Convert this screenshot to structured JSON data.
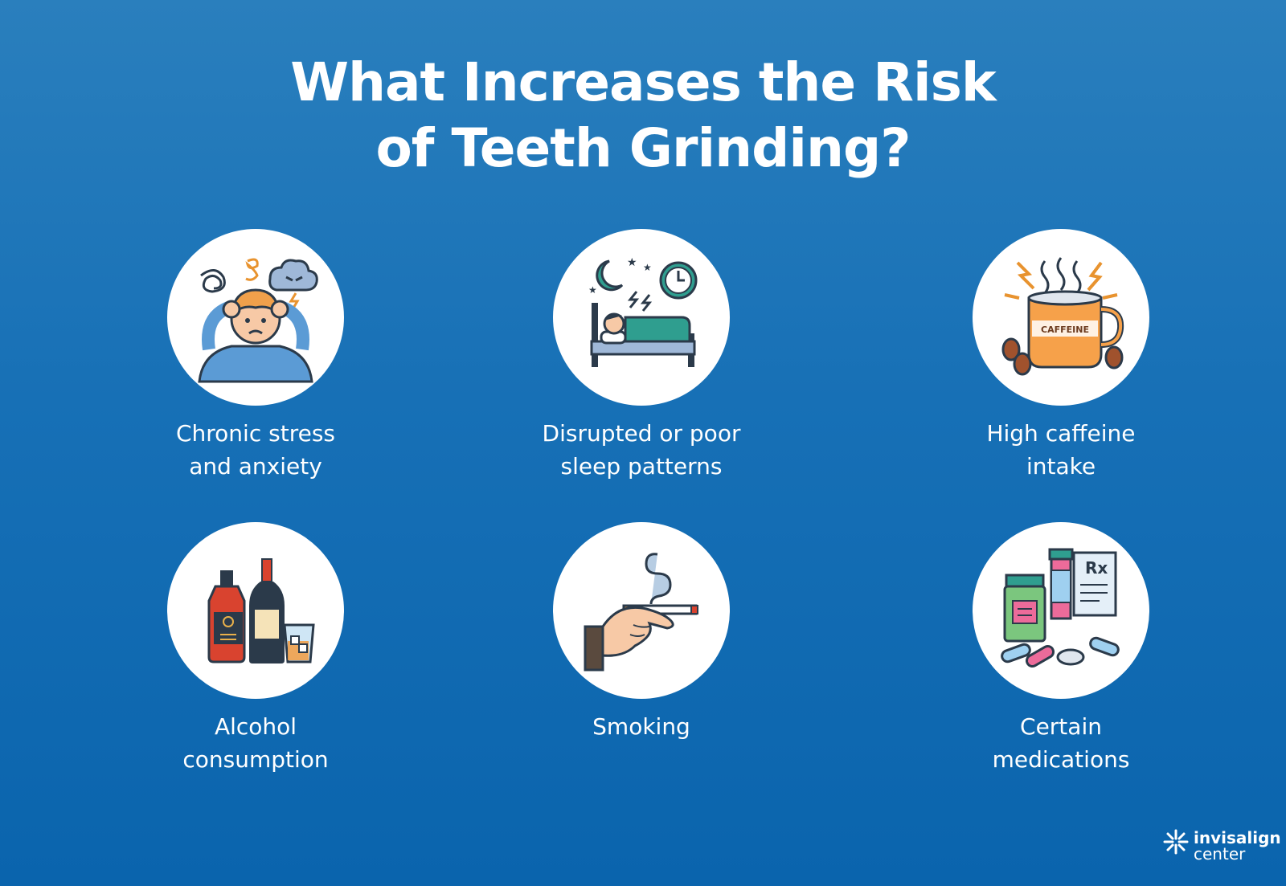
{
  "title": {
    "line1": "What Increases the Risk",
    "line2": "of Teeth Grinding?"
  },
  "risks": [
    {
      "icon": "stressed-person-icon",
      "line1": "Chronic stress",
      "line2": "and anxiety"
    },
    {
      "icon": "sleepless-bed-icon",
      "line1": "Disrupted or poor",
      "line2": "sleep patterns"
    },
    {
      "icon": "coffee-mug-icon",
      "line1": "High caffeine",
      "line2": "intake",
      "mug_text": "CAFFEINE"
    },
    {
      "icon": "alcohol-bottles-icon",
      "line1": "Alcohol",
      "line2": "consumption"
    },
    {
      "icon": "cigarette-hand-icon",
      "line1": "Smoking",
      "line2": ""
    },
    {
      "icon": "medications-icon",
      "line1": "Certain",
      "line2": "medications",
      "rx_text": "Rx"
    }
  ],
  "logo": {
    "word1": "invisalign",
    "word2": "center"
  },
  "colors": {
    "background_top": "#2a7fbd",
    "background_bottom": "#0a64ad",
    "circle": "#ffffff",
    "text": "#ffffff"
  }
}
